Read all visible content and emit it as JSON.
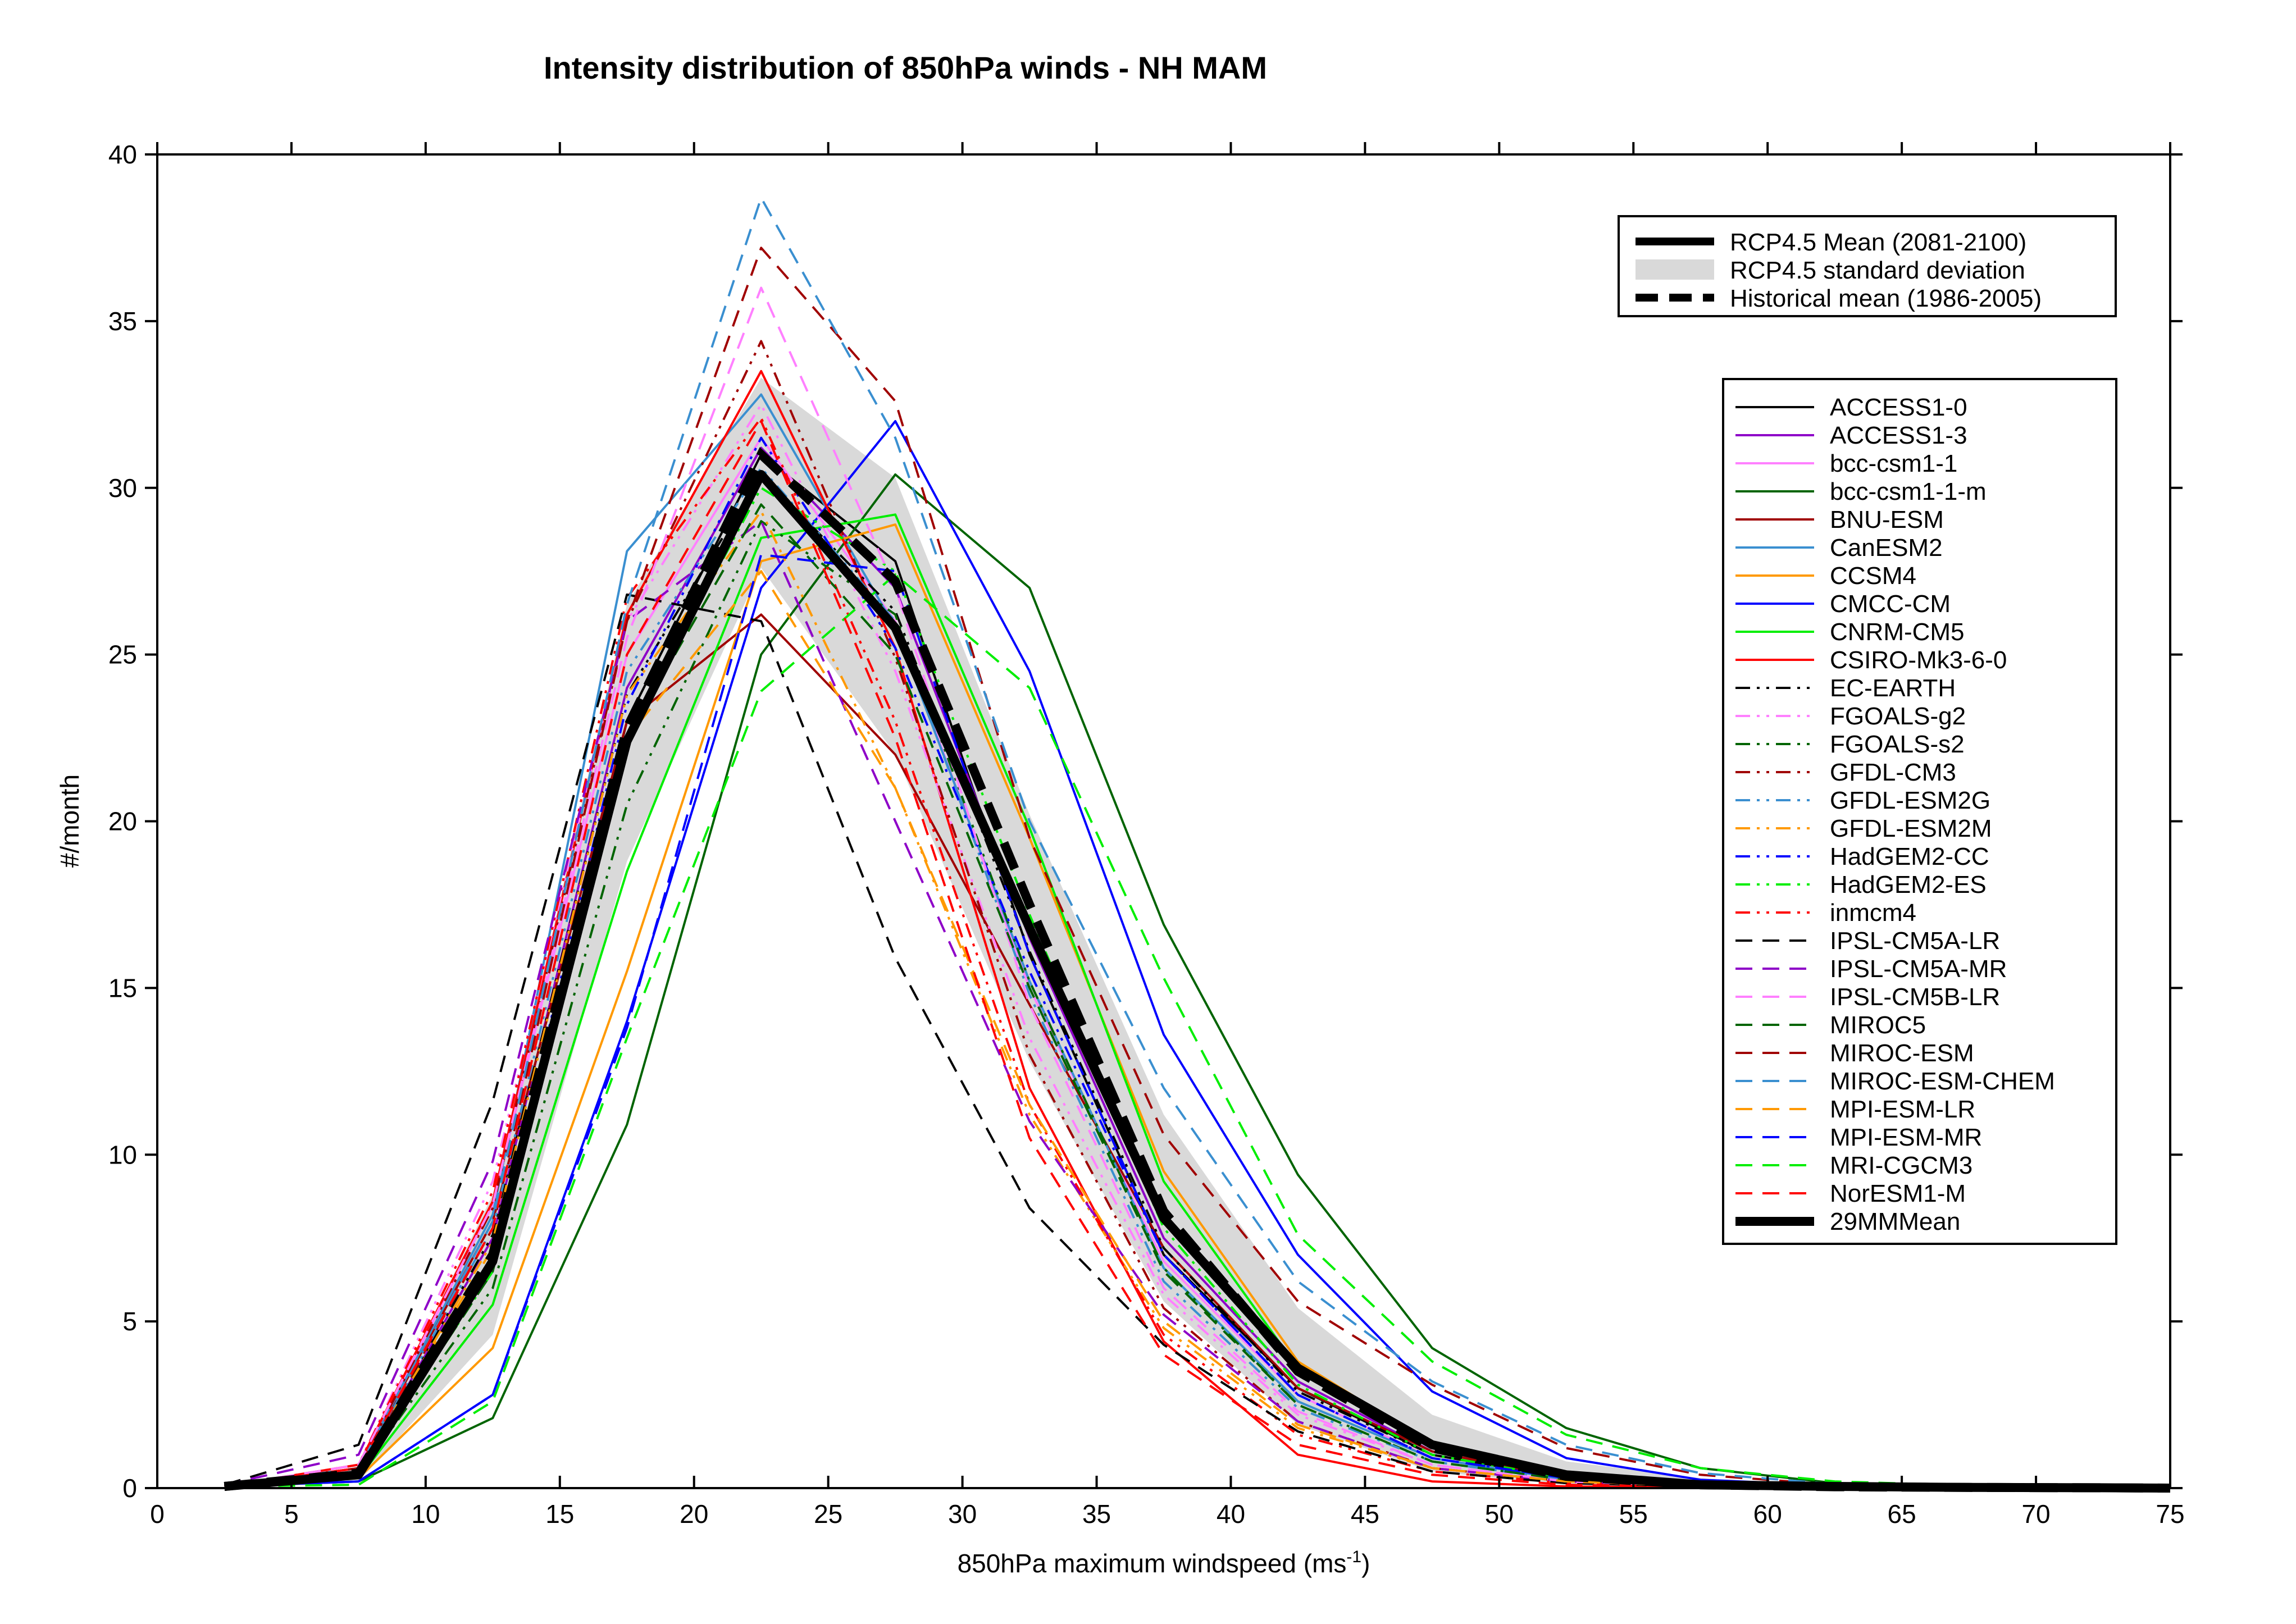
{
  "chart_data": {
    "type": "line",
    "title": "Intensity distribution of 850hPa winds - NH MAM",
    "xlabel": "850hPa maximum windspeed (ms",
    "xlabel_superscript": "-1",
    "xlabel_suffix": ")",
    "ylabel": "#/month",
    "xlim": [
      0,
      75
    ],
    "ylim": [
      0,
      40
    ],
    "xticks": [
      "0",
      "5",
      "10",
      "15",
      "20",
      "25",
      "30",
      "35",
      "40",
      "45",
      "50",
      "55",
      "60",
      "65",
      "70",
      "75"
    ],
    "yticks": [
      "0",
      "5",
      "10",
      "15",
      "20",
      "25",
      "30",
      "35",
      "40"
    ],
    "grid": false,
    "x": [
      2.5,
      7.5,
      12.5,
      17.5,
      22.5,
      27.5,
      32.5,
      37.5,
      42.5,
      47.5,
      52.5,
      57.5,
      62.5,
      67.5,
      72.5,
      75
    ],
    "summary_legend": {
      "placement": "top-right",
      "entries": [
        {
          "name": "RCP4.5 Mean (2081-2100)",
          "style": "solid-thick"
        },
        {
          "name": "RCP4.5 standard deviation",
          "style": "band"
        },
        {
          "name": "Historical mean (1986-2005)",
          "style": "dashed-thick"
        }
      ]
    },
    "std_band": {
      "upper": [
        0.1,
        0.6,
        8.8,
        26.5,
        33.3,
        30.3,
        20.2,
        11.2,
        5.4,
        2.2,
        0.8,
        0.3,
        0.1,
        0.05,
        0.03,
        0.02
      ],
      "lower": [
        0.0,
        0.2,
        4.6,
        18.8,
        27.6,
        22.0,
        12.8,
        5.6,
        1.9,
        0.5,
        0.1,
        0.05,
        0.02,
        0.0,
        0.0,
        0.0
      ]
    },
    "rcp_mean": [
      0.05,
      0.4,
      6.8,
      22.4,
      30.4,
      25.8,
      16.8,
      8.1,
      3.6,
      1.3,
      0.4,
      0.1,
      0.05,
      0.02,
      0.01,
      0.0
    ],
    "historical_mean": [
      0.05,
      0.45,
      7.0,
      22.8,
      31.0,
      27.2,
      17.5,
      8.3,
      3.5,
      1.2,
      0.35,
      0.1,
      0.04,
      0.02,
      0.01,
      0.0
    ],
    "series": [
      {
        "name": "ACCESS1-0",
        "color": "#000000",
        "dash": "solid",
        "values": [
          0.05,
          0.4,
          7.0,
          23.0,
          31.0,
          27.8,
          16.0,
          7.0,
          3.0,
          1.0,
          0.3,
          0.1,
          0.04,
          0.02,
          0.01,
          0.0
        ]
      },
      {
        "name": "ACCESS1-3",
        "color": "#8e00c8",
        "dash": "solid",
        "values": [
          0.05,
          0.5,
          7.5,
          24.0,
          31.2,
          27.0,
          16.5,
          7.5,
          3.2,
          1.1,
          0.3,
          0.1,
          0.04,
          0.02,
          0.01,
          0.0
        ]
      },
      {
        "name": "bcc-csm1-1",
        "color": "#ff80ff",
        "dash": "solid",
        "values": [
          0.05,
          0.6,
          8.5,
          25.0,
          31.5,
          26.0,
          15.0,
          6.8,
          2.8,
          0.9,
          0.25,
          0.08,
          0.03,
          0.01,
          0.01,
          0.0
        ]
      },
      {
        "name": "bcc-csm1-1-m",
        "color": "#006400",
        "dash": "solid",
        "values": [
          0.05,
          0.2,
          2.1,
          10.9,
          25.0,
          30.4,
          27.0,
          16.9,
          9.4,
          4.2,
          1.8,
          0.6,
          0.15,
          0.05,
          0.02,
          0.0
        ]
      },
      {
        "name": "BNU-ESM",
        "color": "#a00000",
        "dash": "solid",
        "values": [
          0.05,
          0.6,
          8.0,
          23.0,
          26.2,
          22.0,
          14.5,
          7.2,
          3.0,
          1.1,
          0.3,
          0.1,
          0.04,
          0.02,
          0.01,
          0.0
        ]
      },
      {
        "name": "CanESM2",
        "color": "#3a8fd0",
        "dash": "solid",
        "values": [
          0.05,
          0.6,
          8.2,
          28.1,
          32.8,
          25.8,
          15.2,
          6.6,
          2.6,
          0.9,
          0.25,
          0.08,
          0.03,
          0.01,
          0.01,
          0.0
        ]
      },
      {
        "name": "CCSM4",
        "color": "#ff9900",
        "dash": "solid",
        "values": [
          0.05,
          0.3,
          4.2,
          15.5,
          27.8,
          28.9,
          19.5,
          9.5,
          3.8,
          1.3,
          0.4,
          0.1,
          0.04,
          0.02,
          0.01,
          0.0
        ]
      },
      {
        "name": "CMCC-CM",
        "color": "#0000ff",
        "dash": "solid",
        "values": [
          0.05,
          0.2,
          2.8,
          14.0,
          27.0,
          32.0,
          24.5,
          13.6,
          7.0,
          2.9,
          0.9,
          0.25,
          0.08,
          0.03,
          0.01,
          0.0
        ]
      },
      {
        "name": "CNRM-CM5",
        "color": "#00ee00",
        "dash": "solid",
        "values": [
          0.05,
          0.3,
          5.5,
          18.5,
          28.5,
          29.2,
          19.8,
          9.2,
          3.6,
          1.3,
          0.4,
          0.1,
          0.04,
          0.02,
          0.01,
          0.0
        ]
      },
      {
        "name": "CSIRO-Mk3-6-0",
        "color": "#ff0000",
        "dash": "solid",
        "values": [
          0.05,
          0.7,
          8.6,
          26.2,
          33.5,
          25.2,
          12.0,
          4.4,
          1.0,
          0.2,
          0.05,
          0.02,
          0.01,
          0.0,
          0.0,
          0.0
        ]
      },
      {
        "name": "EC-EARTH",
        "color": "#000000",
        "dash": "dashdotdot",
        "values": [
          0.05,
          0.5,
          7.6,
          23.8,
          30.4,
          26.3,
          16.1,
          7.2,
          2.9,
          1.0,
          0.3,
          0.1,
          0.04,
          0.02,
          0.01,
          0.0
        ]
      },
      {
        "name": "FGOALS-g2",
        "color": "#ff80ff",
        "dash": "dashdotdot",
        "values": [
          0.05,
          0.7,
          9.2,
          26.0,
          32.5,
          24.5,
          13.5,
          5.8,
          2.2,
          0.7,
          0.2,
          0.06,
          0.02,
          0.01,
          0.0,
          0.0
        ]
      },
      {
        "name": "FGOALS-s2",
        "color": "#006400",
        "dash": "dashdotdot",
        "values": [
          0.05,
          0.4,
          6.0,
          20.5,
          29.0,
          26.2,
          15.2,
          6.6,
          2.5,
          0.8,
          0.25,
          0.08,
          0.03,
          0.01,
          0.0,
          0.0
        ]
      },
      {
        "name": "GFDL-CM3",
        "color": "#a00000",
        "dash": "dashdotdot",
        "values": [
          0.05,
          0.6,
          8.4,
          26.0,
          34.4,
          24.9,
          13.0,
          5.4,
          2.0,
          0.6,
          0.2,
          0.06,
          0.02,
          0.01,
          0.0,
          0.0
        ]
      },
      {
        "name": "GFDL-ESM2G",
        "color": "#3a8fd0",
        "dash": "dashdotdot",
        "values": [
          0.05,
          0.5,
          7.8,
          24.5,
          30.6,
          26.0,
          14.8,
          6.2,
          2.4,
          0.8,
          0.25,
          0.08,
          0.03,
          0.01,
          0.0,
          0.0
        ]
      },
      {
        "name": "GFDL-ESM2M",
        "color": "#ff9900",
        "dash": "dashdotdot",
        "values": [
          0.05,
          0.5,
          7.4,
          23.8,
          29.3,
          21.0,
          11.2,
          4.8,
          1.8,
          0.6,
          0.2,
          0.06,
          0.02,
          0.01,
          0.0,
          0.0
        ]
      },
      {
        "name": "HadGEM2-CC",
        "color": "#0000ff",
        "dash": "dashdotdot",
        "values": [
          0.05,
          0.4,
          6.8,
          23.5,
          31.5,
          25.2,
          15.5,
          7.0,
          2.8,
          0.9,
          0.3,
          0.1,
          0.04,
          0.02,
          0.01,
          0.0
        ]
      },
      {
        "name": "HadGEM2-ES",
        "color": "#00ee00",
        "dash": "dashdotdot",
        "values": [
          0.05,
          0.4,
          6.5,
          22.5,
          30.0,
          27.5,
          17.2,
          7.8,
          3.1,
          1.0,
          0.3,
          0.1,
          0.04,
          0.02,
          0.01,
          0.0
        ]
      },
      {
        "name": "inmcm4",
        "color": "#ff0000",
        "dash": "dashdotdot",
        "values": [
          0.05,
          0.7,
          8.9,
          26.7,
          32.1,
          23.0,
          11.5,
          4.6,
          1.6,
          0.5,
          0.15,
          0.05,
          0.02,
          0.01,
          0.0,
          0.0
        ]
      },
      {
        "name": "IPSL-CM5A-LR",
        "color": "#000000",
        "dash": "dashed",
        "values": [
          0.1,
          1.3,
          11.6,
          26.8,
          26.0,
          15.9,
          8.4,
          4.3,
          1.7,
          0.5,
          0.15,
          0.05,
          0.02,
          0.01,
          0.0,
          0.0
        ]
      },
      {
        "name": "IPSL-CM5A-MR",
        "color": "#8e00c8",
        "dash": "dashed",
        "values": [
          0.1,
          1.0,
          9.8,
          26.0,
          29.0,
          20.0,
          11.0,
          5.2,
          2.0,
          0.6,
          0.2,
          0.06,
          0.02,
          0.01,
          0.0,
          0.0
        ]
      },
      {
        "name": "IPSL-CM5B-LR",
        "color": "#ff80ff",
        "dash": "dashed",
        "values": [
          0.05,
          0.7,
          8.5,
          25.5,
          36.0,
          27.0,
          14.5,
          6.0,
          2.3,
          0.7,
          0.2,
          0.06,
          0.02,
          0.01,
          0.0,
          0.0
        ]
      },
      {
        "name": "MIROC5",
        "color": "#006400",
        "dash": "dashed",
        "values": [
          0.05,
          0.4,
          6.5,
          22.5,
          29.5,
          25.0,
          15.0,
          6.5,
          2.5,
          0.8,
          0.25,
          0.08,
          0.03,
          0.01,
          0.0,
          0.0
        ]
      },
      {
        "name": "MIROC-ESM",
        "color": "#a00000",
        "dash": "dashed",
        "values": [
          0.05,
          0.5,
          7.8,
          26.0,
          37.2,
          32.6,
          19.5,
          10.6,
          5.6,
          3.1,
          1.2,
          0.4,
          0.1,
          0.04,
          0.02,
          0.0
        ]
      },
      {
        "name": "MIROC-ESM-CHEM",
        "color": "#3a8fd0",
        "dash": "dashed",
        "values": [
          0.05,
          0.5,
          8.0,
          26.5,
          38.7,
          31.5,
          20.0,
          12.0,
          6.2,
          3.2,
          1.3,
          0.45,
          0.12,
          0.05,
          0.02,
          0.0
        ]
      },
      {
        "name": "MPI-ESM-LR",
        "color": "#ff9900",
        "dash": "dashed",
        "values": [
          0.05,
          0.5,
          7.2,
          22.5,
          27.5,
          21.0,
          11.5,
          5.0,
          1.9,
          0.6,
          0.2,
          0.06,
          0.02,
          0.01,
          0.0,
          0.0
        ]
      },
      {
        "name": "MPI-ESM-MR",
        "color": "#0000ff",
        "dash": "dashed",
        "values": [
          0.05,
          0.2,
          2.8,
          13.8,
          28.0,
          27.5,
          16.0,
          7.0,
          2.8,
          0.9,
          0.3,
          0.1,
          0.04,
          0.02,
          0.01,
          0.0
        ]
      },
      {
        "name": "MRI-CGCM3",
        "color": "#00ee00",
        "dash": "dashed",
        "values": [
          0.05,
          0.1,
          2.6,
          13.5,
          23.9,
          27.4,
          24.0,
          15.3,
          7.6,
          3.8,
          1.6,
          0.6,
          0.2,
          0.08,
          0.03,
          0.0
        ]
      },
      {
        "name": "NorESM1-M",
        "color": "#ff0000",
        "dash": "dashed",
        "values": [
          0.05,
          0.6,
          7.8,
          25.0,
          32.0,
          22.5,
          10.5,
          4.0,
          1.3,
          0.4,
          0.1,
          0.04,
          0.01,
          0.0,
          0.0,
          0.0
        ]
      },
      {
        "name": "29MMMean",
        "color": "#000000",
        "dash": "solid-thick",
        "values": [
          0.05,
          0.45,
          7.0,
          22.8,
          30.7,
          26.6,
          16.8,
          7.9,
          3.4,
          1.2,
          0.35,
          0.1,
          0.04,
          0.02,
          0.01,
          0.0
        ]
      }
    ],
    "model_legend_placement": "right"
  }
}
